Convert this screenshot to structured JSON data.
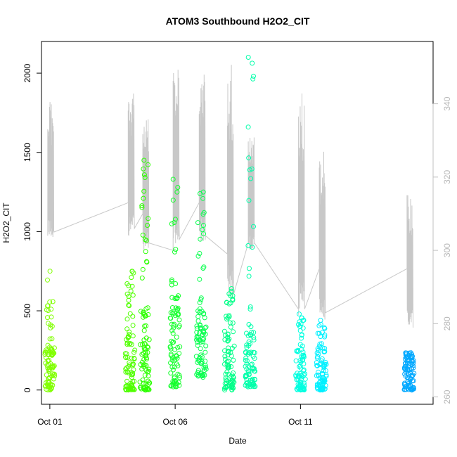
{
  "chart_data": {
    "type": "scatter",
    "title": "ATOM3 Southbound H2O2_CIT",
    "xlabel": "Date",
    "ylabel": "H2O2_CIT",
    "x_axis": {
      "type": "date",
      "range": [
        "2017-09-30T16:00",
        "2017-10-16T07:00"
      ],
      "ticks": [
        {
          "value": "2017-10-01T00:00",
          "label": "Oct 01"
        },
        {
          "value": "2017-10-06T00:00",
          "label": "Oct 06"
        },
        {
          "value": "2017-10-11T00:00",
          "label": "Oct 11"
        }
      ]
    },
    "y_axis": {
      "range": [
        -90,
        2200
      ],
      "ticks": [
        0,
        500,
        1000,
        1500,
        2000
      ]
    },
    "y2_axis": {
      "description": "secondary scale for grey line",
      "range": [
        258,
        357
      ],
      "ticks": [
        260,
        280,
        300,
        320,
        340
      ],
      "color": "#c0c0c0"
    },
    "grid": false,
    "legend": "none",
    "line_color": "#c8c8c8",
    "flights": [
      {
        "time": "2017-10-01T00:00",
        "color": "#80ff00",
        "y_max": 750,
        "y_min": 0,
        "dense": [
          0,
          270
        ],
        "secondary": {
          "low": 303,
          "high": 342,
          "base": 304
        }
      },
      {
        "time": "2017-10-04T05:00",
        "color": "#50ff00",
        "y_max": 750,
        "y_min": 0,
        "dense": [
          0,
          380
        ],
        "secondary": {
          "low": 304,
          "high": 344,
          "base": 313
        }
      },
      {
        "time": "2017-10-04T19:00",
        "color": "#2cff00",
        "y_max": 1450,
        "y_min": 0,
        "dense": [
          0,
          550
        ],
        "secondary": {
          "low": 300,
          "high": 337,
          "base": 310
        }
      },
      {
        "time": "2017-10-06T00:00",
        "color": "#14ff2c",
        "y_max": 1330,
        "y_min": 20,
        "dense": [
          20,
          550
        ],
        "secondary": {
          "low": 301,
          "high": 350,
          "base": 300
        }
      },
      {
        "time": "2017-10-07T01:00",
        "color": "#0aff50",
        "y_max": 1250,
        "y_min": 80,
        "dense": [
          80,
          500
        ],
        "secondary": {
          "low": 302,
          "high": 349,
          "base": 313
        }
      },
      {
        "time": "2017-10-08T04:00",
        "color": "#00ff88",
        "y_max": 640,
        "y_min": 0,
        "dense": [
          0,
          380
        ],
        "secondary": {
          "low": 286,
          "high": 353,
          "base": 299
        }
      },
      {
        "time": "2017-10-09T00:00",
        "color": "#00ffaa",
        "y_max": 2100,
        "y_min": 20,
        "dense": [
          20,
          380
        ],
        "secondary": {
          "low": 300,
          "high": 331,
          "base": 302
        }
      },
      {
        "time": "2017-10-11T00:00",
        "color": "#00ffe0",
        "y_max": 480,
        "y_min": 0,
        "dense": [
          0,
          250
        ],
        "secondary": {
          "low": 282,
          "high": 346,
          "base": 284
        }
      },
      {
        "time": "2017-10-11T20:00",
        "color": "#00f0ff",
        "y_max": 440,
        "y_min": 0,
        "dense": [
          0,
          250
        ],
        "secondary": {
          "low": 281,
          "high": 327,
          "base": 295
        }
      },
      {
        "time": "2017-10-15T08:00",
        "color": "#00a8ff",
        "y_max": 235,
        "y_min": 0,
        "dense": [
          0,
          200
        ],
        "secondary": {
          "low": 278,
          "high": 316,
          "base": 295
        }
      }
    ]
  }
}
